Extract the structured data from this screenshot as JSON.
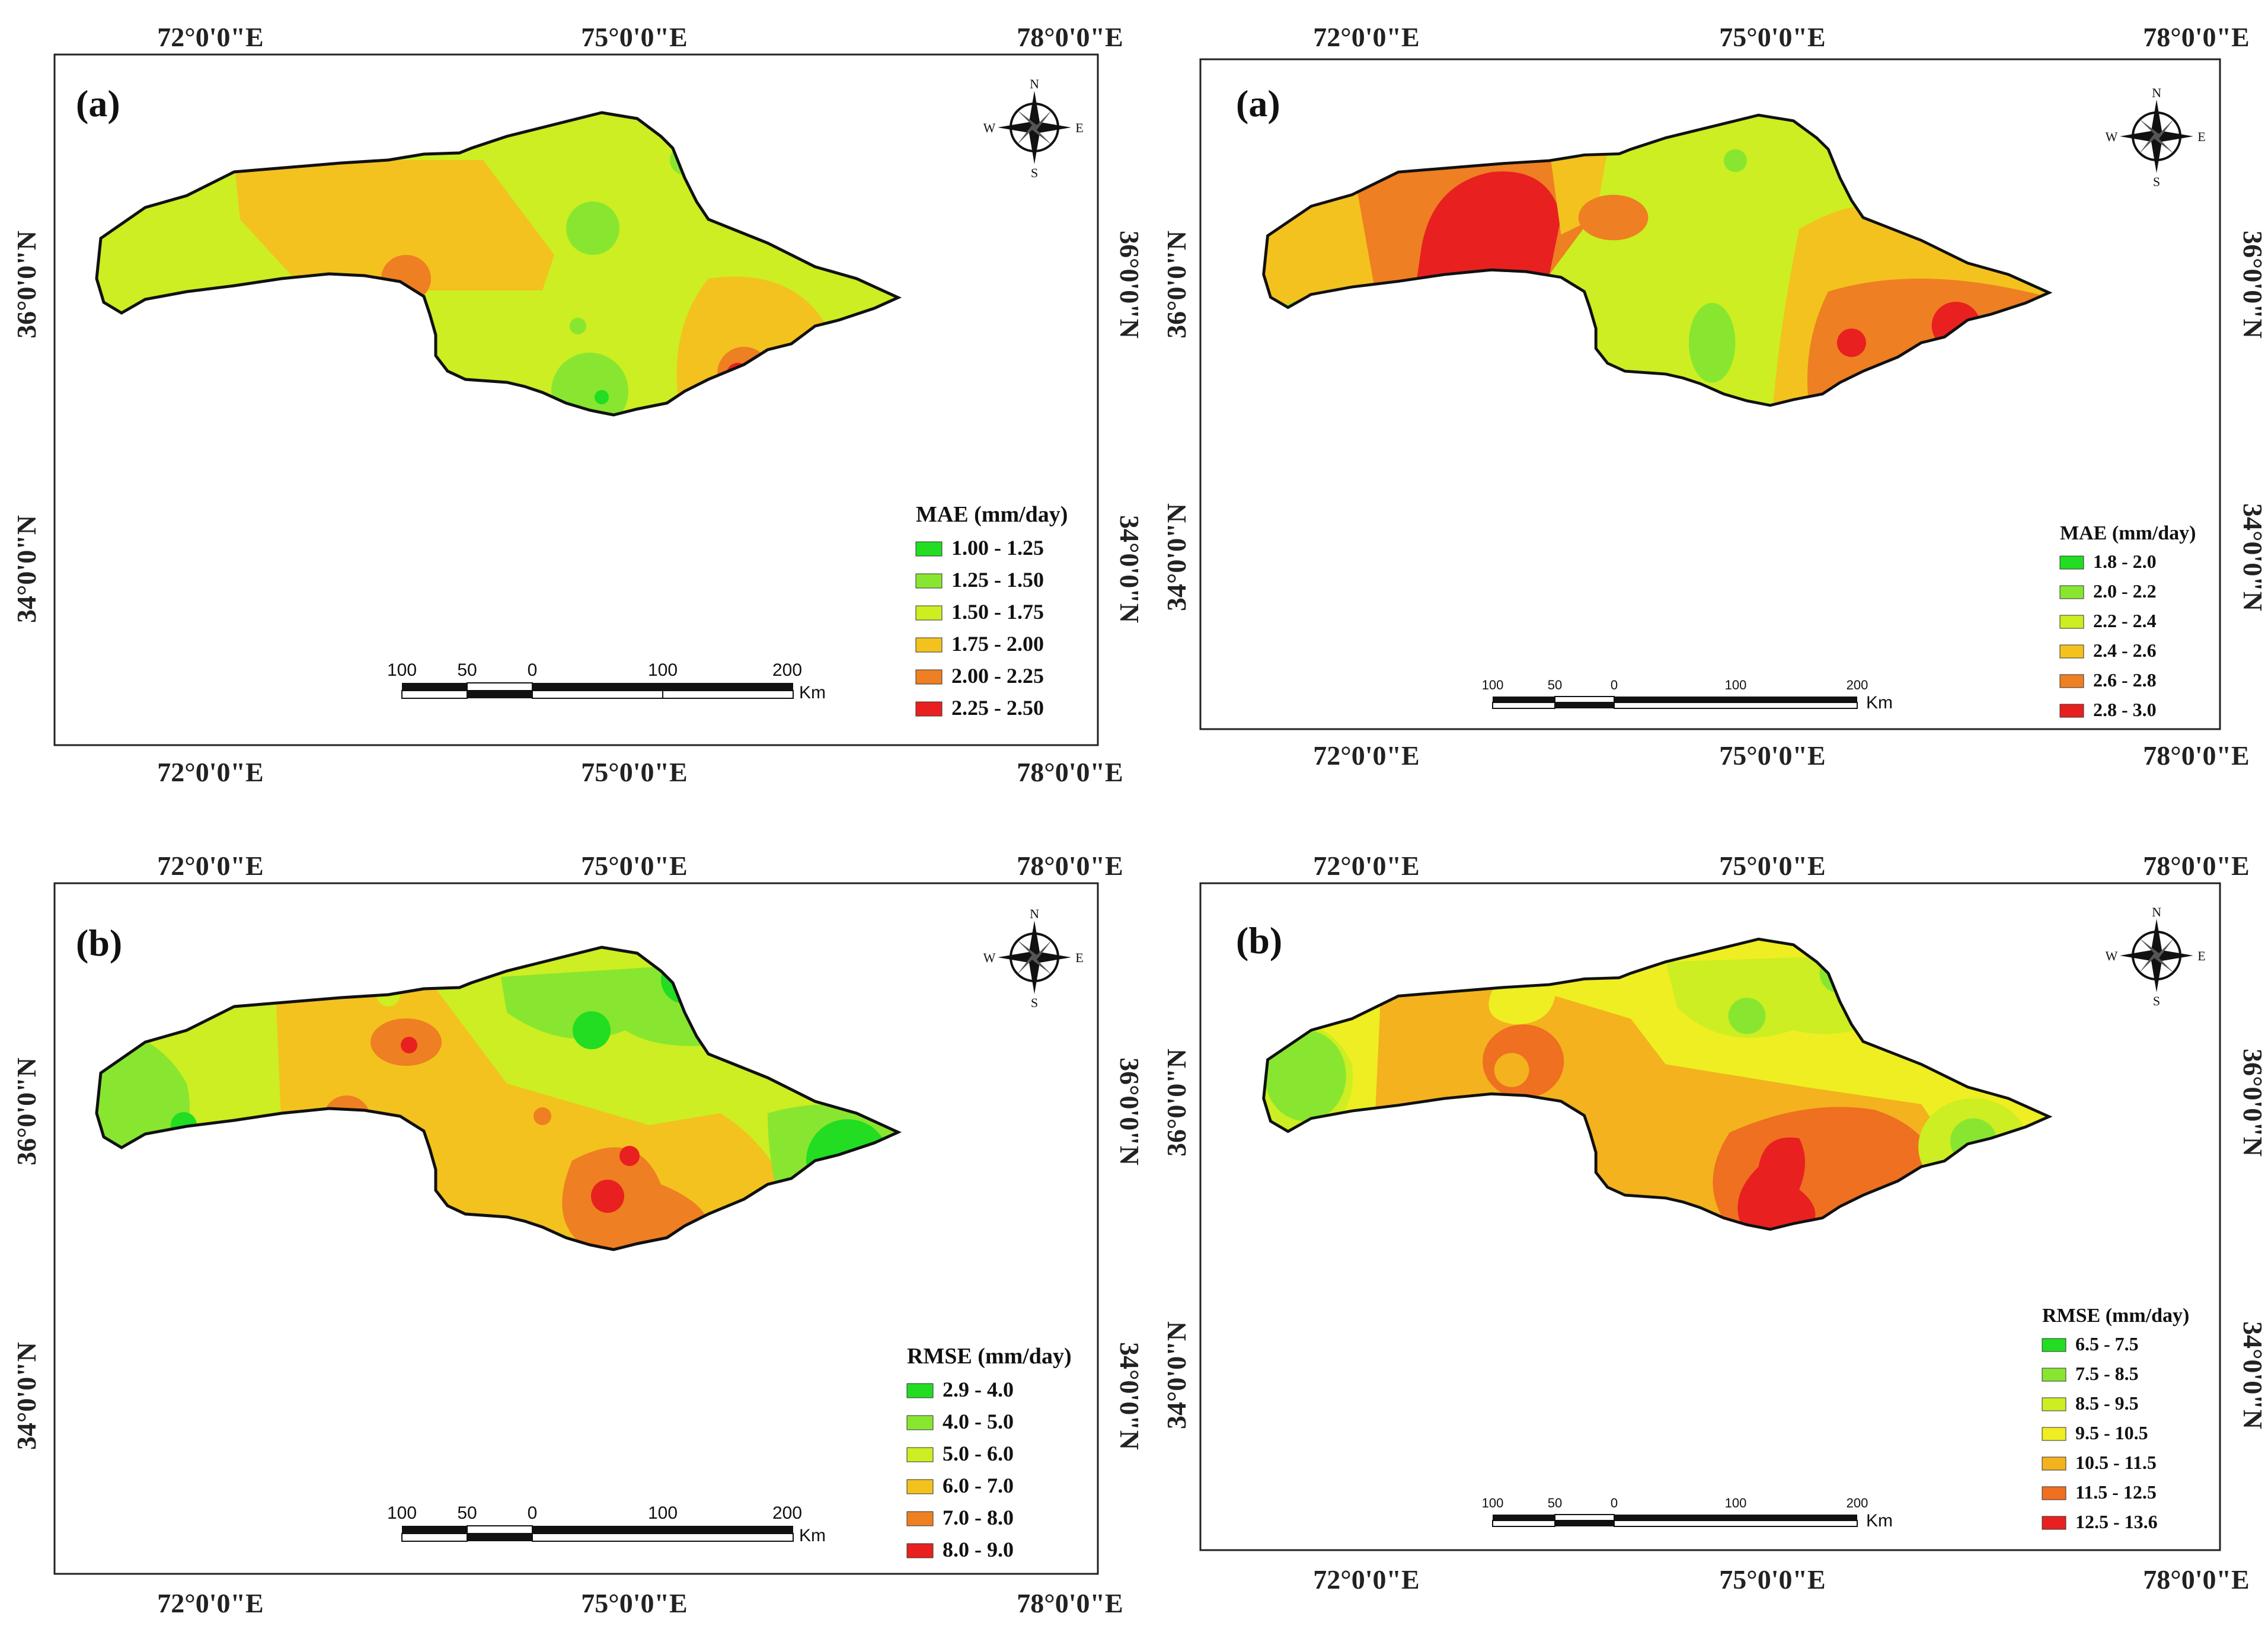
{
  "panels": [
    {
      "id": "top-left",
      "label": "(a)",
      "top_ticks": [
        "72°0'0\"E",
        "75°0'0\"E",
        "78°0'0\"E"
      ],
      "bottom_ticks": [
        "72°0'0\"E",
        "75°0'0\"E",
        "78°0'0\"E"
      ],
      "right_ticks": [
        "36°0'0\"N",
        "34°0'0\"N"
      ],
      "legend_title": "MAE (mm/day)",
      "legend": [
        {
          "label": "1.00 - 1.25",
          "color": "#22dd22"
        },
        {
          "label": "1.25 - 1.50",
          "color": "#88e630"
        },
        {
          "label": "1.50 - 1.75",
          "color": "#ccee22"
        },
        {
          "label": "1.75 - 2.00",
          "color": "#f3c21e"
        },
        {
          "label": "2.00 - 2.25",
          "color": "#ee7f22"
        },
        {
          "label": "2.25 - 2.50",
          "color": "#e82020"
        }
      ],
      "scale_labels": [
        "100",
        "50",
        "0",
        "100",
        "200"
      ],
      "scale_unit": "Km",
      "compass": [
        "N",
        "E",
        "S",
        "W"
      ]
    },
    {
      "id": "top-right",
      "label": "(a)",
      "top_ticks": [
        "72°0'0\"E",
        "75°0'0\"E",
        "78°0'0\"E"
      ],
      "bottom_ticks": [
        "72°0'0\"E",
        "75°0'0\"E",
        "78°0'0\"E"
      ],
      "right_ticks": [
        "36°0'0\"N",
        "34°0'0\"N"
      ],
      "legend_title": "MAE (mm/day)",
      "legend": [
        {
          "label": "1.8 - 2.0",
          "color": "#22dd22"
        },
        {
          "label": "2.0 - 2.2",
          "color": "#88e630"
        },
        {
          "label": "2.2 - 2.4",
          "color": "#ccee22"
        },
        {
          "label": "2.4 - 2.6",
          "color": "#f3c21e"
        },
        {
          "label": "2.6 - 2.8",
          "color": "#ee7f22"
        },
        {
          "label": "2.8 - 3.0",
          "color": "#e82020"
        }
      ],
      "scale_labels": [
        "100",
        "50",
        "0",
        "100",
        "200"
      ],
      "scale_unit": "Km",
      "compass": [
        "N",
        "E",
        "S",
        "W"
      ]
    },
    {
      "id": "bottom-left",
      "label": "(b)",
      "top_ticks": [
        "72°0'0\"E",
        "75°0'0\"E",
        "78°0'0\"E"
      ],
      "bottom_ticks": [
        "72°0'0\"E",
        "75°0'0\"E",
        "78°0'0\"E"
      ],
      "right_ticks": [
        "36°0'0\"N",
        "34°0'0\"N"
      ],
      "legend_title": "RMSE (mm/day)",
      "legend": [
        {
          "label": "2.9 - 4.0",
          "color": "#22dd22"
        },
        {
          "label": "4.0 - 5.0",
          "color": "#88e630"
        },
        {
          "label": "5.0 - 6.0",
          "color": "#ccee22"
        },
        {
          "label": "6.0 - 7.0",
          "color": "#f3c21e"
        },
        {
          "label": "7.0 - 8.0",
          "color": "#ee7f22"
        },
        {
          "label": "8.0 - 9.0",
          "color": "#e82020"
        }
      ],
      "scale_labels": [
        "100",
        "50",
        "0",
        "100",
        "200"
      ],
      "scale_unit": "Km",
      "compass": [
        "N",
        "E",
        "S",
        "W"
      ]
    },
    {
      "id": "bottom-right",
      "label": "(b)",
      "top_ticks": [
        "72°0'0\"E",
        "75°0'0\"E",
        "78°0'0\"E"
      ],
      "bottom_ticks": [
        "72°0'0\"E",
        "75°0'0\"E",
        "78°0'0\"E"
      ],
      "right_ticks": [
        "36°0'0\"N",
        "34°0'0\"N"
      ],
      "legend_title": "RMSE (mm/day)",
      "legend": [
        {
          "label": "6.5 - 7.5",
          "color": "#22dd22"
        },
        {
          "label": "7.5 - 8.5",
          "color": "#88e630"
        },
        {
          "label": "8.5 - 9.5",
          "color": "#ccee22"
        },
        {
          "label": "9.5 - 10.5",
          "color": "#eeee22"
        },
        {
          "label": "10.5 - 11.5",
          "color": "#f3b21e"
        },
        {
          "label": "11.5 - 12.5",
          "color": "#ee7020"
        },
        {
          "label": "12.5 - 13.6",
          "color": "#e82020"
        }
      ],
      "scale_labels": [
        "100",
        "50",
        "0",
        "100",
        "200"
      ],
      "scale_unit": "Km",
      "compass": [
        "N",
        "E",
        "S",
        "W"
      ]
    }
  ]
}
